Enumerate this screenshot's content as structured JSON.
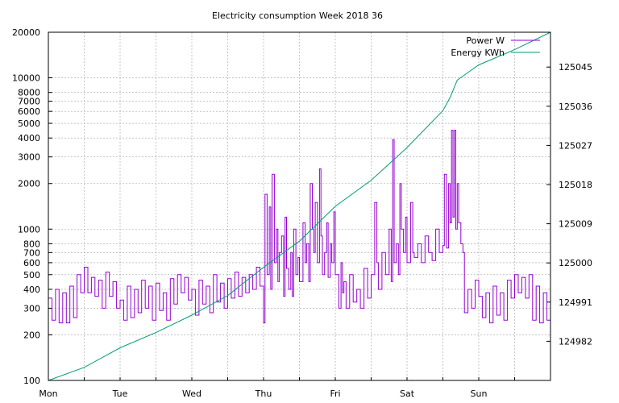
{
  "chart_data": {
    "type": "line",
    "title": "Electricity consumption Week 2018 36",
    "x_ticks": [
      "Mon",
      "Tue",
      "Wed",
      "Thu",
      "Fri",
      "Sat",
      "Sun"
    ],
    "x_range": [
      0,
      7
    ],
    "y_left": {
      "scale": "log",
      "range": [
        100,
        20000
      ],
      "ticks": [
        100,
        200,
        300,
        400,
        500,
        600,
        700,
        800,
        1000,
        2000,
        3000,
        4000,
        5000,
        6000,
        7000,
        8000,
        10000,
        20000
      ]
    },
    "y_right": {
      "scale": "linear",
      "range": [
        124973,
        125053
      ],
      "ticks": [
        124982,
        124991,
        125000,
        125009,
        125018,
        125027,
        125036,
        125045
      ]
    },
    "grid": true,
    "legend_position": "top-right",
    "series": [
      {
        "name": "Power W",
        "axis": "left",
        "color": "#9400d3",
        "points": [
          [
            0.0,
            350
          ],
          [
            0.05,
            250
          ],
          [
            0.1,
            400
          ],
          [
            0.15,
            240
          ],
          [
            0.2,
            380
          ],
          [
            0.25,
            240
          ],
          [
            0.3,
            420
          ],
          [
            0.35,
            260
          ],
          [
            0.4,
            500
          ],
          [
            0.45,
            380
          ],
          [
            0.5,
            560
          ],
          [
            0.55,
            380
          ],
          [
            0.6,
            480
          ],
          [
            0.65,
            360
          ],
          [
            0.7,
            460
          ],
          [
            0.75,
            300
          ],
          [
            0.8,
            520
          ],
          [
            0.85,
            360
          ],
          [
            0.9,
            450
          ],
          [
            0.95,
            300
          ],
          [
            1.0,
            340
          ],
          [
            1.05,
            250
          ],
          [
            1.1,
            420
          ],
          [
            1.15,
            260
          ],
          [
            1.2,
            400
          ],
          [
            1.25,
            280
          ],
          [
            1.3,
            460
          ],
          [
            1.35,
            300
          ],
          [
            1.4,
            420
          ],
          [
            1.45,
            250
          ],
          [
            1.5,
            440
          ],
          [
            1.55,
            290
          ],
          [
            1.6,
            380
          ],
          [
            1.65,
            250
          ],
          [
            1.7,
            470
          ],
          [
            1.75,
            320
          ],
          [
            1.8,
            500
          ],
          [
            1.85,
            380
          ],
          [
            1.9,
            480
          ],
          [
            1.95,
            340
          ],
          [
            2.0,
            400
          ],
          [
            2.05,
            270
          ],
          [
            2.1,
            460
          ],
          [
            2.15,
            320
          ],
          [
            2.2,
            420
          ],
          [
            2.25,
            280
          ],
          [
            2.3,
            500
          ],
          [
            2.35,
            330
          ],
          [
            2.4,
            440
          ],
          [
            2.45,
            300
          ],
          [
            2.5,
            470
          ],
          [
            2.55,
            350
          ],
          [
            2.6,
            520
          ],
          [
            2.65,
            360
          ],
          [
            2.7,
            480
          ],
          [
            2.75,
            380
          ],
          [
            2.8,
            500
          ],
          [
            2.85,
            400
          ],
          [
            2.9,
            560
          ],
          [
            2.95,
            420
          ],
          [
            3.0,
            240
          ],
          [
            3.02,
            1700
          ],
          [
            3.05,
            500
          ],
          [
            3.08,
            1400
          ],
          [
            3.1,
            400
          ],
          [
            3.12,
            2300
          ],
          [
            3.15,
            600
          ],
          [
            3.18,
            1000
          ],
          [
            3.2,
            450
          ],
          [
            3.22,
            700
          ],
          [
            3.25,
            900
          ],
          [
            3.28,
            360
          ],
          [
            3.3,
            1200
          ],
          [
            3.32,
            550
          ],
          [
            3.35,
            400
          ],
          [
            3.38,
            700
          ],
          [
            3.4,
            360
          ],
          [
            3.42,
            1000
          ],
          [
            3.45,
            500
          ],
          [
            3.48,
            650
          ],
          [
            3.5,
            450
          ],
          [
            3.55,
            1100
          ],
          [
            3.58,
            600
          ],
          [
            3.6,
            800
          ],
          [
            3.63,
            450
          ],
          [
            3.65,
            2000
          ],
          [
            3.68,
            1000
          ],
          [
            3.7,
            700
          ],
          [
            3.72,
            1500
          ],
          [
            3.75,
            600
          ],
          [
            3.78,
            2500
          ],
          [
            3.8,
            900
          ],
          [
            3.82,
            500
          ],
          [
            3.85,
            700
          ],
          [
            3.88,
            1100
          ],
          [
            3.9,
            480
          ],
          [
            3.93,
            800
          ],
          [
            3.95,
            600
          ],
          [
            3.98,
            1300
          ],
          [
            4.0,
            500
          ],
          [
            4.05,
            300
          ],
          [
            4.08,
            600
          ],
          [
            4.1,
            380
          ],
          [
            4.12,
            450
          ],
          [
            4.15,
            300
          ],
          [
            4.2,
            500
          ],
          [
            4.25,
            330
          ],
          [
            4.3,
            400
          ],
          [
            4.35,
            300
          ],
          [
            4.4,
            550
          ],
          [
            4.45,
            350
          ],
          [
            4.5,
            500
          ],
          [
            4.55,
            1500
          ],
          [
            4.58,
            600
          ],
          [
            4.6,
            400
          ],
          [
            4.65,
            700
          ],
          [
            4.7,
            500
          ],
          [
            4.75,
            1000
          ],
          [
            4.78,
            450
          ],
          [
            4.8,
            3900
          ],
          [
            4.82,
            600
          ],
          [
            4.85,
            800
          ],
          [
            4.88,
            500
          ],
          [
            4.9,
            2000
          ],
          [
            4.92,
            1000
          ],
          [
            4.95,
            700
          ],
          [
            4.98,
            1200
          ],
          [
            5.0,
            600
          ],
          [
            5.05,
            1500
          ],
          [
            5.08,
            700
          ],
          [
            5.1,
            650
          ],
          [
            5.15,
            800
          ],
          [
            5.2,
            600
          ],
          [
            5.25,
            900
          ],
          [
            5.3,
            700
          ],
          [
            5.35,
            620
          ],
          [
            5.4,
            1000
          ],
          [
            5.45,
            700
          ],
          [
            5.5,
            780
          ],
          [
            5.52,
            2300
          ],
          [
            5.55,
            750
          ],
          [
            5.58,
            2000
          ],
          [
            5.6,
            1100
          ],
          [
            5.62,
            4500
          ],
          [
            5.64,
            1200
          ],
          [
            5.66,
            4500
          ],
          [
            5.68,
            1000
          ],
          [
            5.7,
            2000
          ],
          [
            5.72,
            1100
          ],
          [
            5.75,
            800
          ],
          [
            5.78,
            700
          ],
          [
            5.8,
            280
          ],
          [
            5.85,
            400
          ],
          [
            5.9,
            300
          ],
          [
            5.95,
            460
          ],
          [
            6.0,
            360
          ],
          [
            6.05,
            260
          ],
          [
            6.1,
            380
          ],
          [
            6.15,
            240
          ],
          [
            6.2,
            420
          ],
          [
            6.25,
            270
          ],
          [
            6.3,
            380
          ],
          [
            6.35,
            250
          ],
          [
            6.4,
            460
          ],
          [
            6.45,
            350
          ],
          [
            6.5,
            500
          ],
          [
            6.55,
            380
          ],
          [
            6.6,
            480
          ],
          [
            6.65,
            350
          ],
          [
            6.7,
            500
          ],
          [
            6.75,
            250
          ],
          [
            6.8,
            420
          ],
          [
            6.85,
            240
          ],
          [
            6.9,
            380
          ],
          [
            6.95,
            250
          ],
          [
            7.0,
            500
          ]
        ]
      },
      {
        "name": "Energy KWh",
        "axis": "right",
        "color": "#009e73",
        "points": [
          [
            0.0,
            124973.0
          ],
          [
            0.5,
            124976.0
          ],
          [
            1.0,
            124980.5
          ],
          [
            1.5,
            124984.0
          ],
          [
            2.0,
            124988.0
          ],
          [
            2.5,
            124992.5
          ],
          [
            3.0,
            124999.0
          ],
          [
            3.5,
            125005.0
          ],
          [
            4.0,
            125013.0
          ],
          [
            4.5,
            125019.0
          ],
          [
            5.0,
            125026.5
          ],
          [
            5.5,
            125035.0
          ],
          [
            5.6,
            125038.0
          ],
          [
            5.7,
            125042.0
          ],
          [
            6.0,
            125045.5
          ],
          [
            6.5,
            125049.0
          ],
          [
            7.0,
            125053.0
          ]
        ]
      }
    ]
  }
}
